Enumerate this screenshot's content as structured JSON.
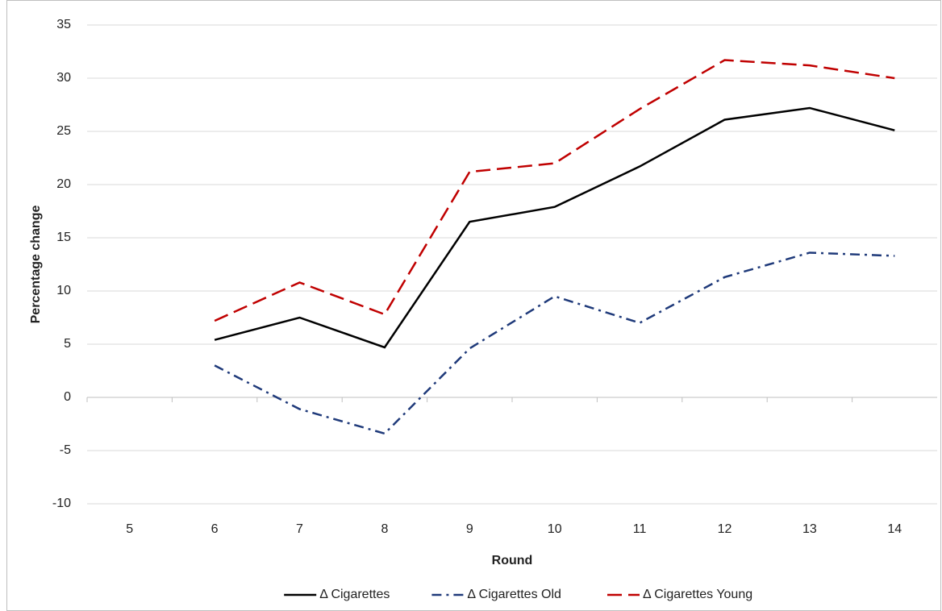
{
  "chart_data": {
    "type": "line",
    "x_label": "Round",
    "y_label": "Percentage change",
    "categories": [
      "5",
      "6",
      "7",
      "8",
      "9",
      "10",
      "11",
      "12",
      "13",
      "14"
    ],
    "series": [
      {
        "name": "Δ Cigarettes",
        "color": "#000000",
        "dash": "solid",
        "values": [
          null,
          5.4,
          7.5,
          4.7,
          16.5,
          17.9,
          21.7,
          26.1,
          27.2,
          25.1
        ]
      },
      {
        "name": "Δ Cigarettes Old",
        "color": "#1f3a7a",
        "dash": "dashdot",
        "values": [
          null,
          3.0,
          -1.1,
          -3.4,
          4.6,
          9.5,
          7.0,
          11.3,
          13.6,
          13.3
        ]
      },
      {
        "name": "Δ Cigarettes Young",
        "color": "#c00000",
        "dash": "dash",
        "values": [
          null,
          7.2,
          10.8,
          7.8,
          21.2,
          22.0,
          27.1,
          31.7,
          31.2,
          30.0
        ]
      }
    ],
    "ylim": [
      -10,
      35
    ],
    "yticks": [
      -10,
      -5,
      0,
      5,
      10,
      15,
      20,
      25,
      30,
      35
    ],
    "grid": true,
    "legend": "bottom"
  }
}
